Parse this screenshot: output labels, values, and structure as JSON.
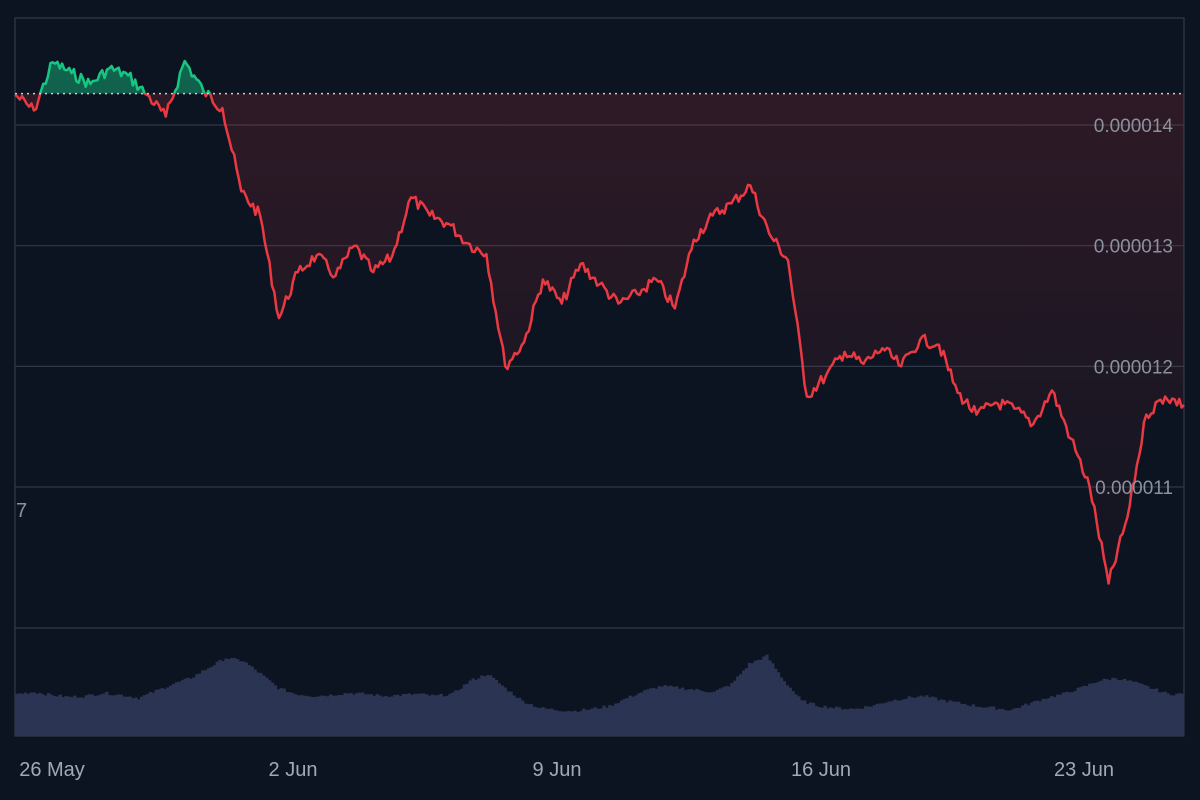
{
  "colors": {
    "background": "#0d1421",
    "grid": "#303846",
    "frame": "#3a4250",
    "up": "#16c784",
    "down": "#ea3943",
    "volume": "#2b3553",
    "baseline": "#c7ccd4",
    "axis_text": "#8b929e"
  },
  "edge_label": "7",
  "chart_data": {
    "type": "line",
    "x_axis": {
      "type": "date",
      "range": [
        "2025-05-26",
        "2025-06-26"
      ],
      "ticks": [
        "26 May",
        "2 Jun",
        "9 Jun",
        "16 Jun",
        "23 Jun"
      ]
    },
    "y_axis": {
      "position": "right",
      "range": [
        1.01e-05,
        1.48e-05
      ],
      "ticks": [
        "0.000014",
        "0.000013",
        "0.000012",
        "0.000011"
      ]
    },
    "baseline_value": 1.426e-05,
    "grid": "horizontal",
    "legend": "none",
    "price_series": [
      [
        "2025-05-26",
        1.425e-05
      ],
      [
        "2025-05-26T12",
        1.412e-05
      ],
      [
        "2025-05-27",
        1.452e-05
      ],
      [
        "2025-05-27T12",
        1.443e-05
      ],
      [
        "2025-05-28",
        1.434e-05
      ],
      [
        "2025-05-28T12",
        1.447e-05
      ],
      [
        "2025-05-29",
        1.441e-05
      ],
      [
        "2025-05-29T12",
        1.425e-05
      ],
      [
        "2025-05-30",
        1.407e-05
      ],
      [
        "2025-05-30T12",
        1.453e-05
      ],
      [
        "2025-05-31",
        1.428e-05
      ],
      [
        "2025-05-31T12",
        1.414e-05
      ],
      [
        "2025-06-01",
        1.345e-05
      ],
      [
        "2025-06-01T12",
        1.325e-05
      ],
      [
        "2025-06-02",
        1.24e-05
      ],
      [
        "2025-06-02T12",
        1.278e-05
      ],
      [
        "2025-06-03",
        1.292e-05
      ],
      [
        "2025-06-03T12",
        1.275e-05
      ],
      [
        "2025-06-04",
        1.3e-05
      ],
      [
        "2025-06-04T12",
        1.278e-05
      ],
      [
        "2025-06-05",
        1.291e-05
      ],
      [
        "2025-06-05T12",
        1.34e-05
      ],
      [
        "2025-06-06",
        1.325e-05
      ],
      [
        "2025-06-06T12",
        1.318e-05
      ],
      [
        "2025-06-07",
        1.302e-05
      ],
      [
        "2025-06-07T12",
        1.293e-05
      ],
      [
        "2025-06-08",
        1.2e-05
      ],
      [
        "2025-06-08T12",
        1.22e-05
      ],
      [
        "2025-06-09",
        1.272e-05
      ],
      [
        "2025-06-09T12",
        1.252e-05
      ],
      [
        "2025-06-10",
        1.285e-05
      ],
      [
        "2025-06-10T12",
        1.268e-05
      ],
      [
        "2025-06-11",
        1.252e-05
      ],
      [
        "2025-06-11T12",
        1.26e-05
      ],
      [
        "2025-06-12",
        1.272e-05
      ],
      [
        "2025-06-12T12",
        1.248e-05
      ],
      [
        "2025-06-13",
        1.305e-05
      ],
      [
        "2025-06-13T12",
        1.325e-05
      ],
      [
        "2025-06-14",
        1.335e-05
      ],
      [
        "2025-06-14T12",
        1.35e-05
      ],
      [
        "2025-06-15",
        1.31e-05
      ],
      [
        "2025-06-15T12",
        1.288e-05
      ],
      [
        "2025-06-16",
        1.175e-05
      ],
      [
        "2025-06-16T12",
        1.192e-05
      ],
      [
        "2025-06-17",
        1.212e-05
      ],
      [
        "2025-06-17T12",
        1.202e-05
      ],
      [
        "2025-06-18",
        1.215e-05
      ],
      [
        "2025-06-18T12",
        1.2e-05
      ],
      [
        "2025-06-19",
        1.222e-05
      ],
      [
        "2025-06-19T12",
        1.218e-05
      ],
      [
        "2025-06-20",
        1.178e-05
      ],
      [
        "2025-06-20T12",
        1.16e-05
      ],
      [
        "2025-06-21",
        1.17e-05
      ],
      [
        "2025-06-21T12",
        1.165e-05
      ],
      [
        "2025-06-22",
        1.152e-05
      ],
      [
        "2025-06-22T12",
        1.18e-05
      ],
      [
        "2025-06-23",
        1.14e-05
      ],
      [
        "2025-06-23T12",
        1.1e-05
      ],
      [
        "2025-06-24",
        1.02e-05
      ],
      [
        "2025-06-24T12",
        1.075e-05
      ],
      [
        "2025-06-25",
        1.16e-05
      ],
      [
        "2025-06-25T12",
        1.175e-05
      ],
      [
        "2025-06-26",
        1.168e-05
      ]
    ],
    "volume_series": {
      "note_scale": "relative 0-1",
      "values": [
        0.42,
        0.44,
        0.41,
        0.39,
        0.4,
        0.43,
        0.41,
        0.38,
        0.45,
        0.52,
        0.58,
        0.68,
        0.78,
        0.75,
        0.62,
        0.48,
        0.42,
        0.4,
        0.41,
        0.43,
        0.42,
        0.4,
        0.41,
        0.42,
        0.4,
        0.42,
        0.55,
        0.62,
        0.48,
        0.35,
        0.28,
        0.26,
        0.25,
        0.27,
        0.3,
        0.38,
        0.45,
        0.5,
        0.48,
        0.46,
        0.44,
        0.52,
        0.72,
        0.8,
        0.55,
        0.35,
        0.3,
        0.28,
        0.27,
        0.3,
        0.35,
        0.38,
        0.4,
        0.36,
        0.33,
        0.3,
        0.28,
        0.26,
        0.32,
        0.38,
        0.42,
        0.48,
        0.55,
        0.58,
        0.54,
        0.48,
        0.42
      ]
    }
  }
}
